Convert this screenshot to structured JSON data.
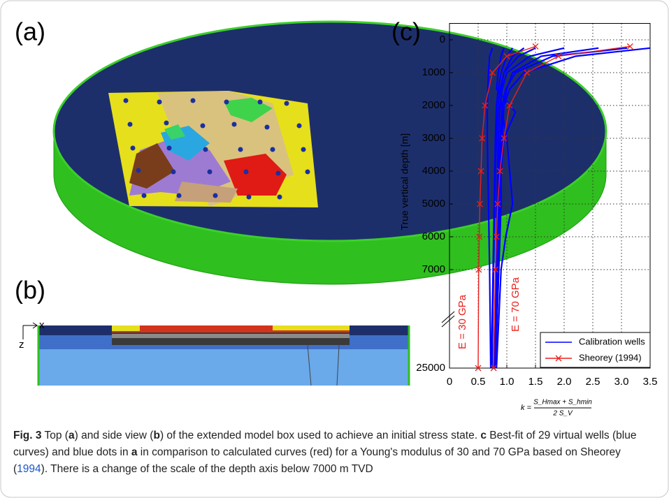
{
  "panel_labels": [
    "(a)",
    "(b)",
    "(c)"
  ],
  "panel_b_axes": [
    "x",
    "z"
  ],
  "chart_data": {
    "type": "line",
    "ylabel": "True vertical depth [m]",
    "xlabel_parts": [
      "k =",
      "S_Hmax + S_hmin",
      "2 S_V"
    ],
    "xlim": [
      0,
      3.5
    ],
    "xticks": [
      0,
      0.5,
      {
        "value": 1,
        "label": "1.0"
      },
      1.5,
      {
        "value": 2,
        "label": "2.0"
      },
      2.5,
      {
        "value": 3,
        "label": "3.0"
      },
      3.5
    ],
    "ylim": [
      -500,
      25000
    ],
    "yticks": [
      0,
      1000,
      2000,
      3000,
      4000,
      5000,
      6000,
      7000,
      25000
    ],
    "grid": true,
    "annotations": [
      "E = 30 GPa",
      "E = 70 GPa"
    ],
    "series": [
      {
        "name": "Calibration wells",
        "color": "#0000ff",
        "curves": [
          {
            "depth": [
              250,
              500,
              1000,
              1500,
              2000,
              3000,
              4000,
              5000,
              6000,
              7000,
              25000
            ],
            "k": [
              3.5,
              2.2,
              1.3,
              1.05,
              0.95,
              0.9,
              0.88,
              0.86,
              0.85,
              0.84,
              0.8
            ]
          },
          {
            "depth": [
              250,
              500,
              1000,
              1500,
              2000,
              3000,
              4000,
              5000,
              6000,
              7000,
              25000
            ],
            "k": [
              3.1,
              1.8,
              1.15,
              0.98,
              0.92,
              0.88,
              0.86,
              0.85,
              0.84,
              0.83,
              0.78
            ]
          },
          {
            "depth": [
              250,
              500,
              1000,
              1500,
              2000,
              3000,
              4000,
              5000,
              6000,
              7000,
              25000
            ],
            "k": [
              2.6,
              1.6,
              1.1,
              1.0,
              0.95,
              0.92,
              0.9,
              0.9,
              0.88,
              0.86,
              0.8
            ]
          },
          {
            "depth": [
              250,
              500,
              1000,
              1500,
              2000,
              3000,
              4000,
              5000,
              6000,
              7000,
              25000
            ],
            "k": [
              2.0,
              1.4,
              1.0,
              0.92,
              0.88,
              0.85,
              0.84,
              0.83,
              0.82,
              0.81,
              0.77
            ]
          },
          {
            "depth": [
              250,
              500,
              1000,
              1500,
              2000,
              3000,
              4000,
              5000,
              6000,
              7000,
              25000
            ],
            "k": [
              1.5,
              1.2,
              0.95,
              0.88,
              0.85,
              0.82,
              0.8,
              0.79,
              0.78,
              0.77,
              0.74
            ]
          },
          {
            "depth": [
              250,
              500,
              1000,
              1500,
              2000,
              3000,
              4000,
              5000,
              6000,
              7000,
              25000
            ],
            "k": [
              1.1,
              1.0,
              0.9,
              0.85,
              0.82,
              0.8,
              0.79,
              0.78,
              0.77,
              0.76,
              0.73
            ]
          },
          {
            "depth": [
              250,
              500,
              1000,
              1500,
              2000,
              3000,
              4000,
              5000,
              6000,
              7000,
              25000
            ],
            "k": [
              0.75,
              0.7,
              0.68,
              0.67,
              0.66,
              0.66,
              0.67,
              0.68,
              0.69,
              0.7,
              0.72
            ]
          },
          {
            "depth": [
              250,
              500,
              1000,
              1500,
              2200,
              3000,
              4000,
              5000,
              6000,
              7000,
              25000
            ],
            "k": [
              0.95,
              0.9,
              0.85,
              0.82,
              1.15,
              0.95,
              0.9,
              0.88,
              0.87,
              0.86,
              0.8
            ]
          },
          {
            "depth": [
              250,
              500,
              1000,
              1500,
              2000,
              3000,
              4000,
              5000,
              6000,
              7000,
              25000
            ],
            "k": [
              1.3,
              1.1,
              0.95,
              0.9,
              0.9,
              1.0,
              1.05,
              1.1,
              0.98,
              0.9,
              0.82
            ]
          }
        ]
      },
      {
        "name": "Sheorey (1994)",
        "color": "#e8201c",
        "curves": [
          {
            "depth": [
              200,
              500,
              1000,
              2000,
              3000,
              4000,
              5000,
              6000,
              7000,
              25000
            ],
            "k": [
              1.5,
              1.0,
              0.75,
              0.62,
              0.57,
              0.55,
              0.53,
              0.52,
              0.51,
              0.5
            ]
          },
          {
            "depth": [
              200,
              500,
              1000,
              2000,
              3000,
              4000,
              5000,
              6000,
              7000,
              25000
            ],
            "k": [
              3.15,
              1.9,
              1.35,
              1.05,
              0.95,
              0.88,
              0.84,
              0.82,
              0.8,
              0.77
            ]
          }
        ]
      }
    ]
  },
  "caption": [
    {
      "text": "Fig. 3",
      "style": "bold"
    },
    {
      "text": "  Top ("
    },
    {
      "text": "a",
      "style": "bold"
    },
    {
      "text": ") and side view ("
    },
    {
      "text": "b",
      "style": "bold"
    },
    {
      "text": ") of the extended model box used to achieve an initial stress state. "
    },
    {
      "text": "c",
      "style": "bold"
    },
    {
      "text": " Best-fit of 29 virtual wells (blue curves) and blue dots in "
    },
    {
      "text": "a",
      "style": "bold"
    },
    {
      "text": " in comparison to calculated curves (red) for a Young's modulus of 30 and 70 GPa based on Sheorey ("
    },
    {
      "text": "1994",
      "style": "link"
    },
    {
      "text": "). There is a change of the scale of the depth axis below 7000 m TVD"
    }
  ]
}
